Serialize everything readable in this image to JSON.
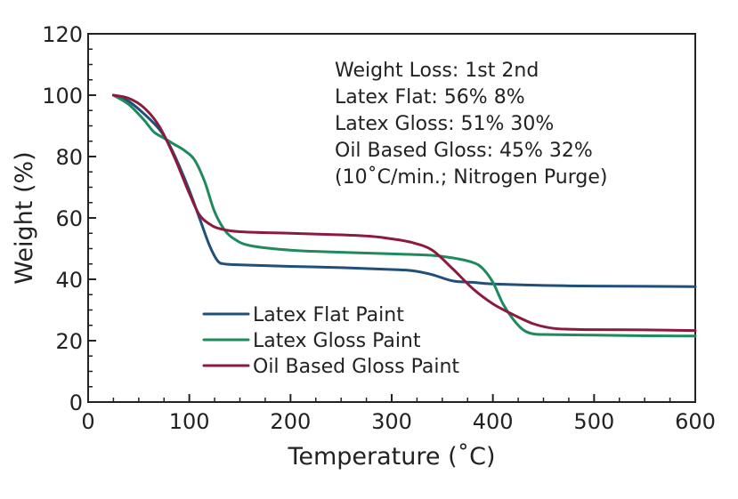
{
  "chart_data": {
    "type": "line",
    "title": "",
    "xlabel": "Temperature (˚C)",
    "ylabel": "Weight (%)",
    "xlim": [
      0,
      600
    ],
    "ylim": [
      0,
      120
    ],
    "x_ticks": [
      0,
      100,
      200,
      300,
      400,
      500,
      600
    ],
    "y_ticks": [
      0,
      20,
      40,
      60,
      80,
      100,
      120
    ],
    "grid": false,
    "legend_position": "lower-left",
    "annotation_lines": [
      "Weight Loss:  1st    2nd",
      "Latex Flat:     56%    8%",
      "Latex Gloss:  51%   30%",
      "Oil Based Gloss:    45% 32%",
      "(10˚C/min.; Nitrogen Purge)"
    ],
    "series": [
      {
        "name": "Latex Flat Paint",
        "color": "#1f4f7a",
        "x": [
          25,
          40,
          55,
          70,
          80,
          90,
          100,
          110,
          120,
          128,
          135,
          150,
          200,
          250,
          300,
          320,
          340,
          360,
          380,
          400,
          450,
          500,
          550,
          600
        ],
        "y": [
          100,
          98,
          94,
          89,
          84,
          77,
          69,
          60,
          51,
          46,
          45,
          44.7,
          44.2,
          43.8,
          43.2,
          42.8,
          41.5,
          39.5,
          39,
          38.5,
          38,
          37.8,
          37.7,
          37.6
        ]
      },
      {
        "name": "Latex Gloss Paint",
        "color": "#1f8a5c",
        "x": [
          25,
          40,
          55,
          65,
          75,
          85,
          95,
          105,
          115,
          125,
          135,
          145,
          160,
          200,
          250,
          300,
          340,
          360,
          380,
          390,
          400,
          410,
          420,
          430,
          440,
          455,
          500,
          550,
          600
        ],
        "y": [
          100,
          97,
          92,
          88,
          86,
          84,
          82,
          79,
          72,
          62,
          56,
          53,
          51,
          49.5,
          48.8,
          48.3,
          47.8,
          47,
          45.5,
          43.5,
          39,
          32,
          27,
          23.5,
          22.2,
          22,
          21.8,
          21.6,
          21.5
        ]
      },
      {
        "name": "Oil Based Gloss Paint",
        "color": "#8c1a3c",
        "x": [
          25,
          40,
          55,
          70,
          85,
          100,
          110,
          120,
          130,
          150,
          200,
          250,
          280,
          300,
          320,
          340,
          360,
          380,
          400,
          420,
          440,
          460,
          480,
          500,
          550,
          600
        ],
        "y": [
          100,
          99,
          96,
          90,
          80,
          68,
          61,
          58,
          56.5,
          55.5,
          55,
          54.5,
          54,
          53.2,
          52,
          49.5,
          43.5,
          37,
          32,
          28.5,
          25.5,
          24,
          23.7,
          23.6,
          23.5,
          23.3
        ]
      }
    ]
  }
}
